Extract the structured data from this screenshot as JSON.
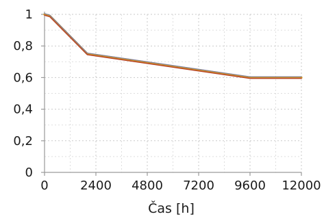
{
  "chart_data": {
    "type": "line",
    "xlabel": "Čas [h]",
    "ylabel": "",
    "xlim": [
      0,
      12000
    ],
    "ylim": [
      0,
      1
    ],
    "x_ticks": [
      0,
      2400,
      4800,
      7200,
      9600,
      12000
    ],
    "x_tick_labels": [
      "0",
      "2400",
      "4800",
      "7200",
      "9600",
      "12000"
    ],
    "y_ticks": [
      0,
      0.2,
      0.4,
      0.6,
      0.8,
      1
    ],
    "y_tick_labels": [
      "0",
      "0,2",
      "0,4",
      "0,6",
      "0,8",
      "1"
    ],
    "grid": true,
    "series": [
      {
        "color": "#d9a321",
        "x": [
          0,
          250,
          2000,
          9600,
          12000
        ],
        "y": [
          1,
          0.99,
          0.75,
          0.6,
          0.6
        ]
      },
      {
        "color": "#b7472a",
        "x": [
          0,
          250,
          2000,
          9600,
          12000
        ],
        "y": [
          1,
          0.99,
          0.75,
          0.6,
          0.6
        ]
      },
      {
        "color": "#7a7a9c",
        "x": [
          0,
          250,
          2000,
          9600,
          12000
        ],
        "y": [
          1,
          0.99,
          0.75,
          0.6,
          0.6
        ]
      }
    ]
  }
}
